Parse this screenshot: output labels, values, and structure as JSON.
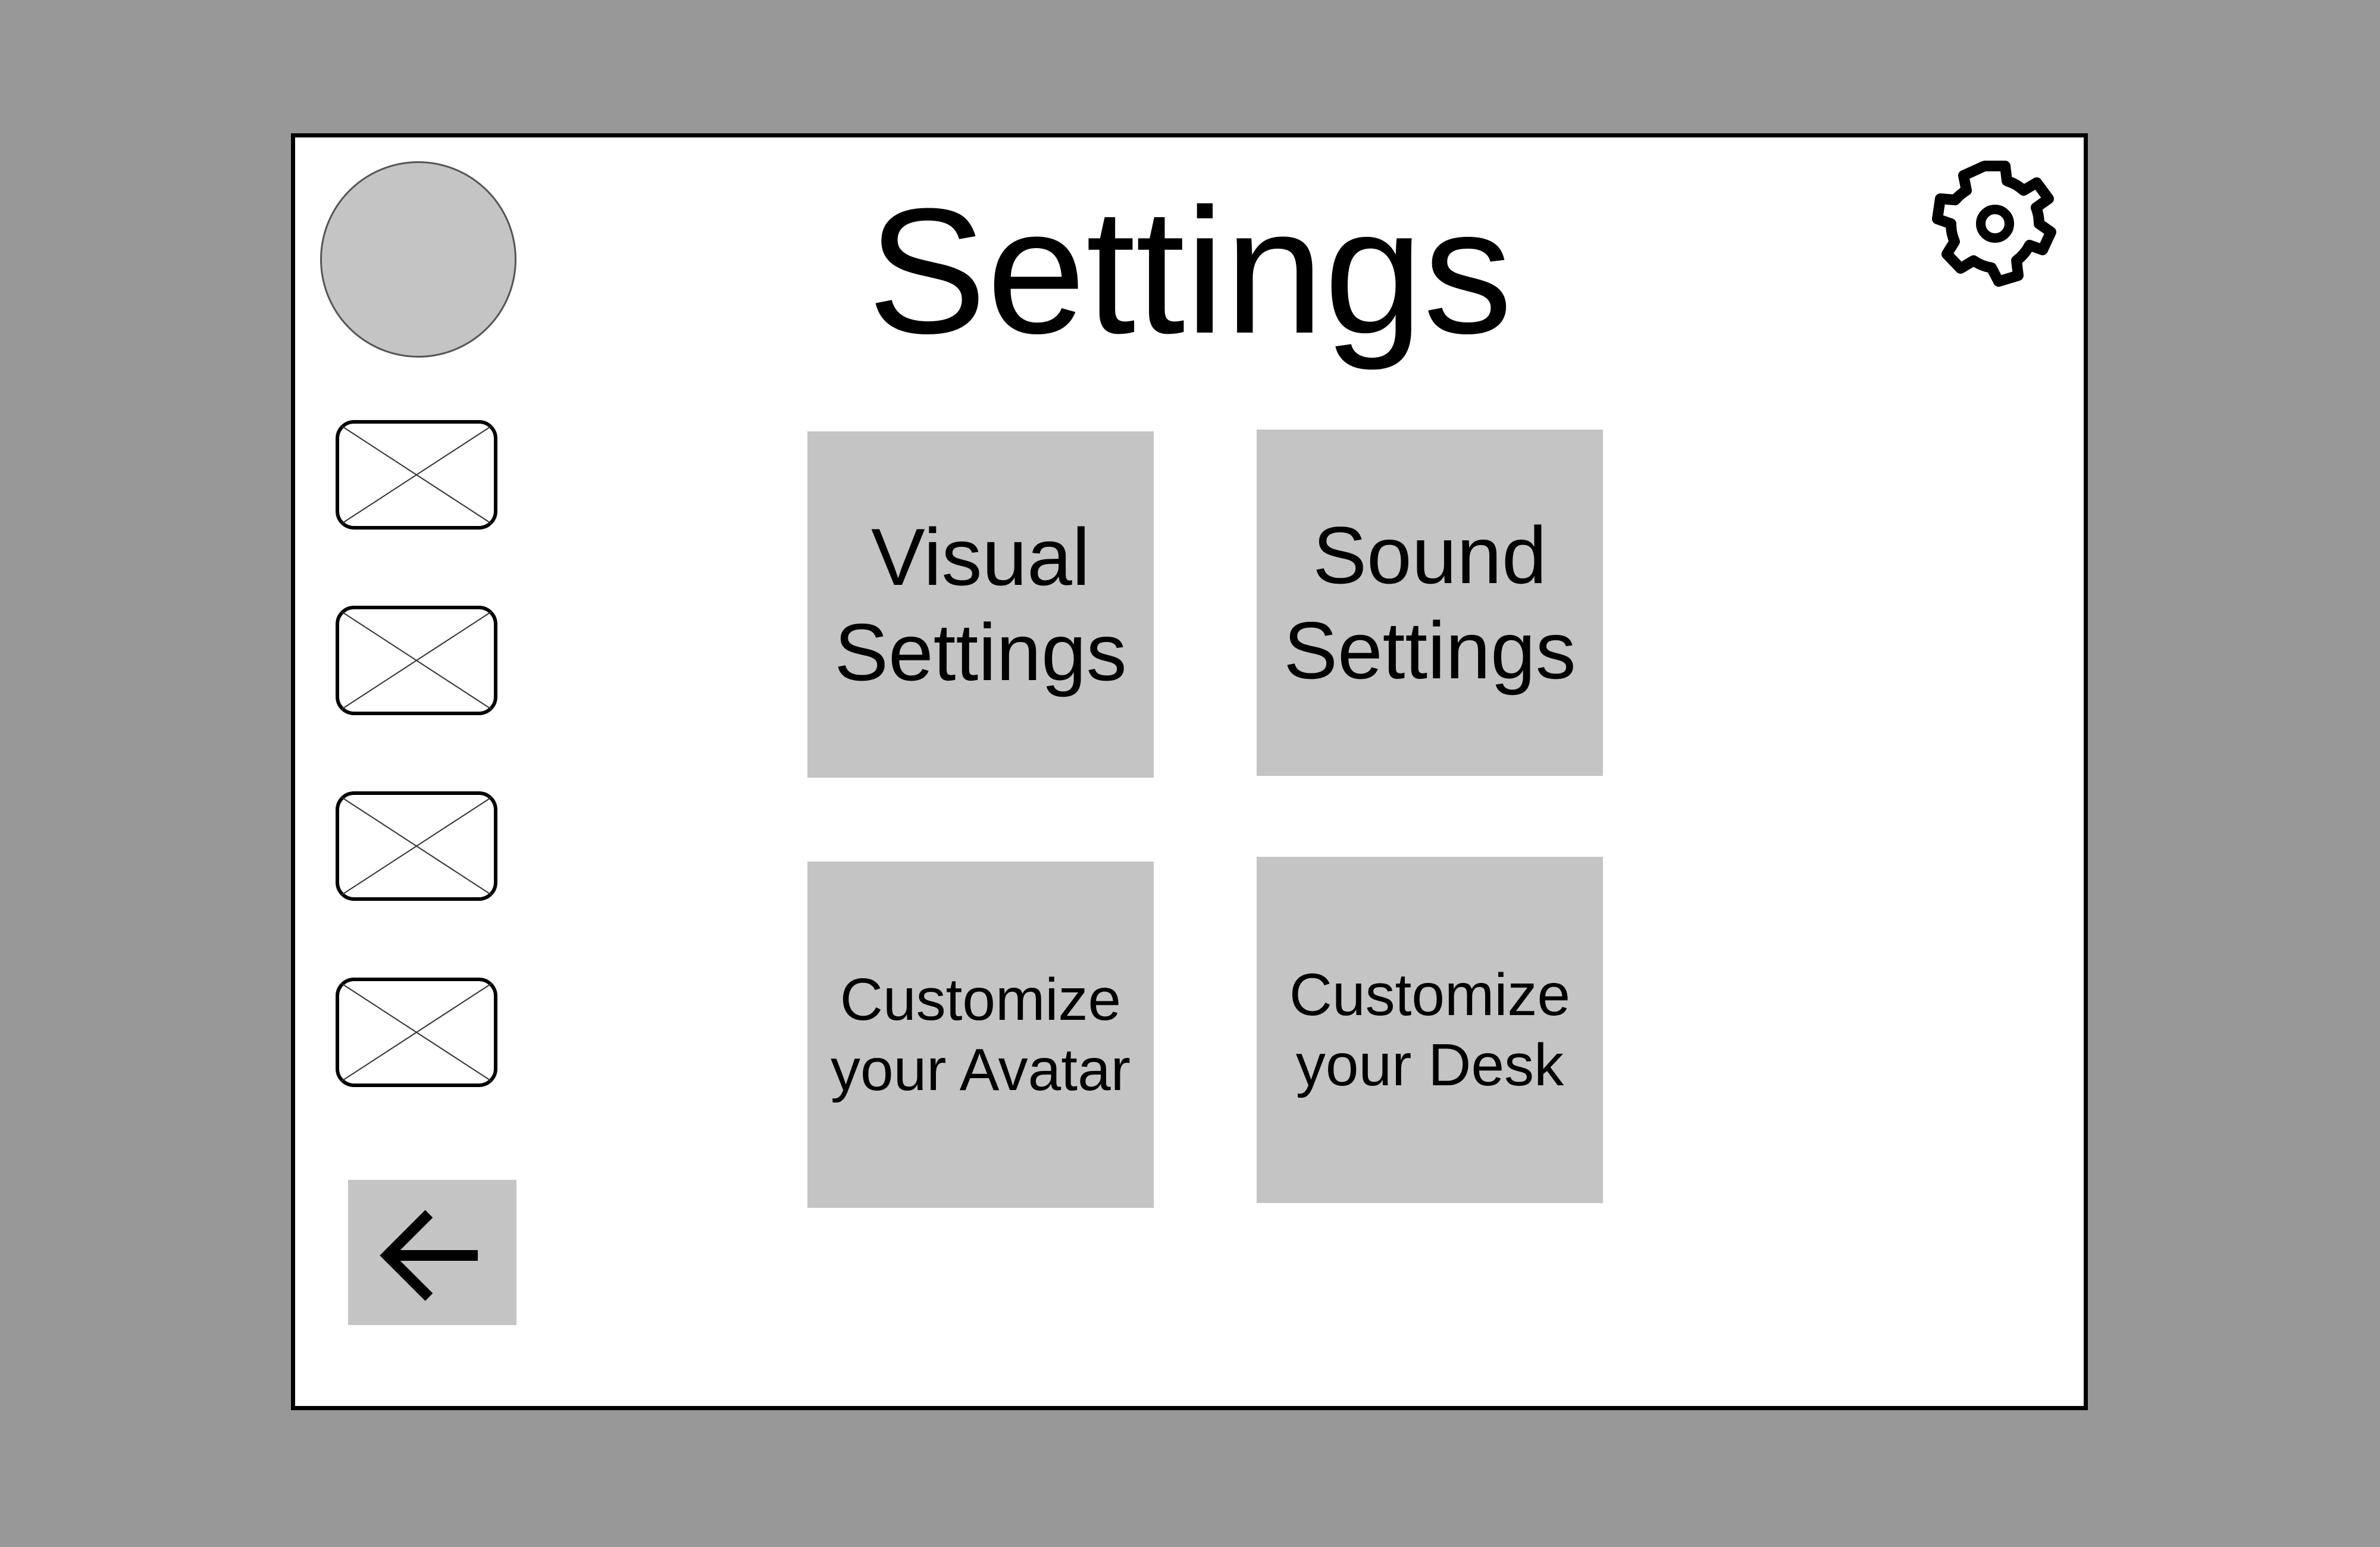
{
  "page": {
    "title": "Settings"
  },
  "sidebar": {
    "avatar_icon": "user-avatar-placeholder",
    "items": [
      {
        "icon": "image-placeholder-icon"
      },
      {
        "icon": "image-placeholder-icon"
      },
      {
        "icon": "image-placeholder-icon"
      },
      {
        "icon": "image-placeholder-icon"
      }
    ],
    "back_icon": "arrow-left-icon"
  },
  "header": {
    "settings_icon": "gear-icon"
  },
  "tiles": [
    {
      "label": "Visual\nSettings"
    },
    {
      "label": "Sound\nSettings"
    },
    {
      "label": "Customize\nyour Avatar"
    },
    {
      "label": "Customize\nyour Desk"
    }
  ],
  "colors": {
    "background": "#989898",
    "panel": "#ffffff",
    "tile": "#c4c4c4",
    "border": "#000000"
  }
}
